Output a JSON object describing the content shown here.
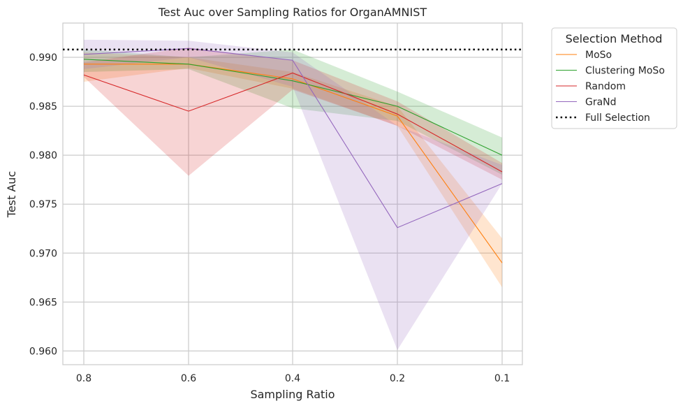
{
  "chart_data": {
    "type": "line",
    "title": "Test Auc over Sampling Ratios for OrganAMNIST",
    "xlabel": "Sampling Ratio",
    "ylabel": "Test Auc",
    "x": [
      "0.8",
      "0.6",
      "0.4",
      "0.2",
      "0.1"
    ],
    "ylim": [
      0.9586,
      0.9935
    ],
    "yticks": [
      0.96,
      0.965,
      0.97,
      0.975,
      0.98,
      0.985,
      0.99
    ],
    "ytick_labels": [
      "0.960",
      "0.965",
      "0.970",
      "0.975",
      "0.980",
      "0.985",
      "0.990"
    ],
    "grid": true,
    "legend": {
      "title": "Selection Method",
      "placement": "outside-top-right"
    },
    "series": [
      {
        "name": "MoSo",
        "color": "#ff7f0e",
        "values": [
          0.9893,
          0.9893,
          0.9878,
          0.984,
          0.969
        ],
        "lower": [
          0.9875,
          0.9889,
          0.9868,
          0.983,
          0.9665
        ],
        "upper": [
          0.9905,
          0.99,
          0.9885,
          0.985,
          0.9715
        ]
      },
      {
        "name": "Clustering MoSo",
        "color": "#2ca02c",
        "values": [
          0.9898,
          0.9893,
          0.9876,
          0.985,
          0.98
        ],
        "lower": [
          0.9885,
          0.9888,
          0.9848,
          0.9835,
          0.978
        ],
        "upper": [
          0.9908,
          0.99,
          0.9908,
          0.9865,
          0.9818
        ]
      },
      {
        "name": "Random",
        "color": "#d62728",
        "values": [
          0.9882,
          0.9845,
          0.9884,
          0.9842,
          0.9783
        ],
        "lower": [
          0.988,
          0.9779,
          0.9867,
          0.983,
          0.9775
        ],
        "upper": [
          0.9895,
          0.991,
          0.9897,
          0.9855,
          0.9792
        ]
      },
      {
        "name": "GraNd",
        "color": "#9467bd",
        "values": [
          0.9903,
          0.9909,
          0.9897,
          0.9726,
          0.9771
        ],
        "lower": [
          0.9888,
          0.99,
          0.987,
          0.9601,
          0.9771
        ],
        "upper": [
          0.9918,
          0.9917,
          0.9905,
          0.983,
          0.979
        ]
      },
      {
        "name": "Full Selection",
        "color": "#000000",
        "style": "dotted",
        "values": [
          0.9908,
          0.9908,
          0.9908,
          0.9908,
          0.9908
        ]
      }
    ]
  }
}
